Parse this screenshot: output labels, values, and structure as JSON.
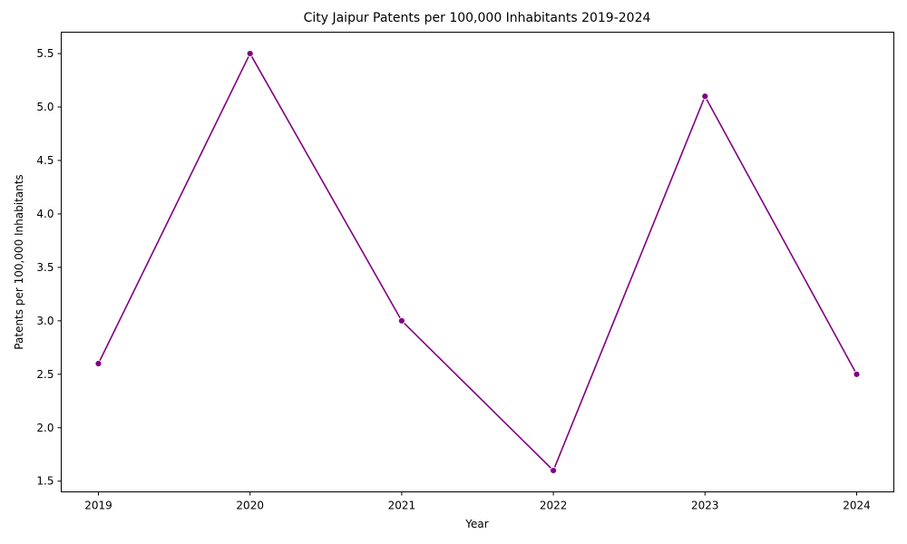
{
  "chart_data": {
    "type": "line",
    "title": "City Jaipur Patents per 100,000 Inhabitants 2019-2024",
    "xlabel": "Year",
    "ylabel": "Patents per 100,000 Inhabitants",
    "categories": [
      "2019",
      "2020",
      "2021",
      "2022",
      "2023",
      "2024"
    ],
    "series": [
      {
        "name": "Patents per 100,000 Inhabitants",
        "values": [
          2.6,
          5.5,
          3.0,
          1.6,
          5.1,
          2.5
        ],
        "color": "#800080",
        "marker": "circle"
      }
    ],
    "ylim": [
      1.4,
      5.7
    ],
    "yticks": [
      1.5,
      2.0,
      2.5,
      3.0,
      3.5,
      4.0,
      4.5,
      5.0,
      5.5
    ],
    "ytick_labels": [
      "1.5",
      "2.0",
      "2.5",
      "3.0",
      "3.5",
      "4.0",
      "4.5",
      "5.0",
      "5.5"
    ],
    "grid": false,
    "legend": "none"
  }
}
